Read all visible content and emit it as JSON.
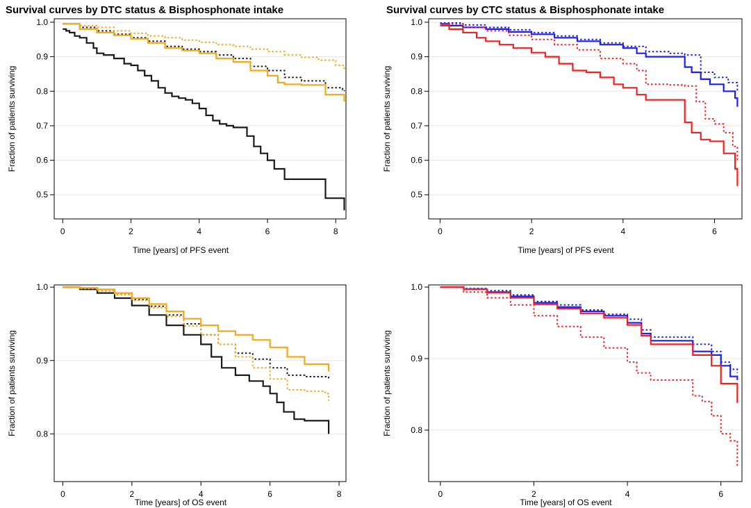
{
  "titles": {
    "left": "Survival curves by DTC status & Bisphosphonate intake",
    "right": "Survival curves by CTC status & Bisphosphonate intake"
  },
  "colors": {
    "black": "#1a1a1a",
    "orange": "#f4a81d",
    "blue": "#1f1fe6",
    "red": "#ee2222",
    "grid": "#e6e6e6"
  },
  "chart_data": [
    {
      "type": "line",
      "id": "pfs-dtc",
      "xlabel": "Time [years] of PFS event",
      "ylabel": "Fraction of patients surviving",
      "xlim": [
        -0.25,
        8.3
      ],
      "ylim": [
        0.43,
        1.01
      ],
      "xticks": [
        0,
        2,
        4,
        6,
        8
      ],
      "yticks": [
        0.5,
        0.6,
        0.7,
        0.8,
        0.9,
        1.0
      ],
      "ytick_labels": [
        "0.5",
        "0.6",
        "0.7",
        "0.8",
        "0.9",
        "1.0"
      ],
      "grid": true,
      "series": [
        {
          "color": "black",
          "dash": false,
          "x": [
            0,
            0.1,
            0.2,
            0.35,
            0.5,
            0.7,
            0.9,
            1.0,
            1.2,
            1.5,
            1.8,
            2.0,
            2.2,
            2.4,
            2.6,
            2.8,
            3.0,
            3.2,
            3.4,
            3.6,
            3.8,
            4.0,
            4.2,
            4.4,
            4.6,
            4.8,
            5.0,
            5.2,
            5.4,
            5.6,
            5.8,
            6.0,
            6.2,
            6.5,
            7.0,
            7.5,
            7.7,
            8.2,
            8.25
          ],
          "y": [
            0.98,
            0.975,
            0.97,
            0.96,
            0.955,
            0.94,
            0.925,
            0.91,
            0.905,
            0.895,
            0.88,
            0.875,
            0.86,
            0.845,
            0.83,
            0.81,
            0.795,
            0.785,
            0.78,
            0.775,
            0.765,
            0.75,
            0.73,
            0.715,
            0.705,
            0.7,
            0.695,
            0.695,
            0.67,
            0.64,
            0.62,
            0.6,
            0.575,
            0.545,
            0.545,
            0.545,
            0.49,
            0.49,
            0.455
          ]
        },
        {
          "color": "black",
          "dash": true,
          "x": [
            0,
            0.5,
            1.0,
            1.5,
            2.0,
            2.5,
            3.0,
            3.5,
            4.0,
            4.5,
            5.0,
            5.5,
            6.0,
            6.5,
            7.0,
            7.7,
            8.2,
            8.25
          ],
          "y": [
            0.995,
            0.985,
            0.975,
            0.965,
            0.955,
            0.945,
            0.93,
            0.922,
            0.915,
            0.905,
            0.895,
            0.872,
            0.86,
            0.84,
            0.83,
            0.81,
            0.805,
            0.8
          ]
        },
        {
          "color": "orange",
          "dash": false,
          "x": [
            0,
            0.5,
            1.0,
            1.5,
            2.0,
            2.5,
            3.0,
            3.5,
            4.0,
            4.5,
            5.0,
            5.5,
            6.0,
            6.3,
            6.5,
            7.0,
            7.7,
            8.2,
            8.25
          ],
          "y": [
            0.995,
            0.98,
            0.97,
            0.962,
            0.952,
            0.94,
            0.925,
            0.918,
            0.91,
            0.895,
            0.885,
            0.86,
            0.845,
            0.825,
            0.82,
            0.818,
            0.79,
            0.79,
            0.77
          ]
        },
        {
          "color": "orange",
          "dash": true,
          "x": [
            0,
            0.5,
            1.0,
            1.5,
            2.0,
            2.5,
            3.0,
            3.5,
            4.0,
            4.5,
            5.0,
            5.5,
            6.0,
            6.5,
            7.0,
            7.5,
            8.0,
            8.25
          ],
          "y": [
            0.995,
            0.99,
            0.985,
            0.975,
            0.968,
            0.96,
            0.955,
            0.948,
            0.942,
            0.935,
            0.93,
            0.922,
            0.915,
            0.905,
            0.898,
            0.89,
            0.875,
            0.86
          ]
        }
      ]
    },
    {
      "type": "line",
      "id": "pfs-ctc",
      "xlabel": "Time [years] of PFS event",
      "ylabel": "Fraction of patients surviving",
      "xlim": [
        -0.25,
        6.6
      ],
      "ylim": [
        0.43,
        1.01
      ],
      "xticks": [
        0,
        2,
        4,
        6
      ],
      "yticks": [
        0.5,
        0.6,
        0.7,
        0.8,
        0.9,
        1.0
      ],
      "ytick_labels": [
        "0.5",
        "0.6",
        "0.7",
        "0.8",
        "0.9",
        "1.0"
      ],
      "grid": true,
      "series": [
        {
          "color": "blue",
          "dash": false,
          "x": [
            0,
            0.2,
            0.5,
            1.0,
            1.5,
            2.0,
            2.5,
            3.0,
            3.5,
            4.0,
            4.3,
            4.5,
            5.0,
            5.35,
            5.5,
            5.7,
            5.9,
            6.2,
            6.45,
            6.5
          ],
          "y": [
            0.995,
            0.99,
            0.985,
            0.98,
            0.972,
            0.965,
            0.955,
            0.945,
            0.935,
            0.925,
            0.91,
            0.9,
            0.9,
            0.87,
            0.855,
            0.835,
            0.82,
            0.8,
            0.78,
            0.755
          ]
        },
        {
          "color": "blue",
          "dash": true,
          "x": [
            0,
            0.5,
            1.0,
            1.5,
            2.0,
            2.5,
            3.0,
            3.5,
            4.0,
            4.5,
            5.0,
            5.35,
            5.7,
            6.0,
            6.3,
            6.5
          ],
          "y": [
            0.998,
            0.992,
            0.985,
            0.978,
            0.97,
            0.96,
            0.95,
            0.94,
            0.93,
            0.915,
            0.91,
            0.905,
            0.855,
            0.84,
            0.825,
            0.8
          ]
        },
        {
          "color": "red",
          "dash": false,
          "x": [
            0,
            0.2,
            0.5,
            0.8,
            1.0,
            1.3,
            1.6,
            2.0,
            2.3,
            2.6,
            2.9,
            3.2,
            3.5,
            3.8,
            4.0,
            4.3,
            4.5,
            5.0,
            5.35,
            5.5,
            5.7,
            5.9,
            6.2,
            6.45,
            6.5
          ],
          "y": [
            0.99,
            0.98,
            0.97,
            0.955,
            0.945,
            0.935,
            0.925,
            0.912,
            0.9,
            0.88,
            0.86,
            0.855,
            0.84,
            0.82,
            0.81,
            0.79,
            0.775,
            0.775,
            0.71,
            0.68,
            0.66,
            0.655,
            0.62,
            0.575,
            0.525
          ]
        },
        {
          "color": "red",
          "dash": true,
          "x": [
            0,
            0.5,
            1.0,
            1.5,
            2.0,
            2.5,
            3.0,
            3.5,
            4.0,
            4.3,
            4.5,
            5.0,
            5.35,
            5.6,
            5.8,
            6.0,
            6.2,
            6.4,
            6.5
          ],
          "y": [
            0.995,
            0.985,
            0.975,
            0.962,
            0.95,
            0.935,
            0.92,
            0.895,
            0.88,
            0.86,
            0.82,
            0.818,
            0.815,
            0.77,
            0.72,
            0.705,
            0.68,
            0.64,
            0.6
          ]
        }
      ]
    },
    {
      "type": "line",
      "id": "os-dtc",
      "xlabel": "Time [years] of OS event",
      "ylabel": "Fraction of patients surviving",
      "xlim": [
        -0.25,
        8.2
      ],
      "ylim": [
        0.735,
        1.003
      ],
      "xticks": [
        0,
        2,
        4,
        6,
        8
      ],
      "yticks": [
        0.8,
        0.9,
        1.0
      ],
      "ytick_labels": [
        "0.8",
        "0.9",
        "1.0"
      ],
      "grid": true,
      "series": [
        {
          "color": "black",
          "dash": false,
          "x": [
            0,
            0.5,
            1.0,
            1.5,
            2.0,
            2.5,
            3.0,
            3.5,
            4.0,
            4.3,
            4.6,
            5.0,
            5.4,
            5.8,
            6.0,
            6.2,
            6.4,
            6.7,
            7.0,
            7.6,
            7.7
          ],
          "y": [
            1.0,
            0.997,
            0.992,
            0.985,
            0.975,
            0.962,
            0.948,
            0.935,
            0.922,
            0.905,
            0.89,
            0.88,
            0.872,
            0.865,
            0.855,
            0.843,
            0.83,
            0.82,
            0.818,
            0.818,
            0.8
          ]
        },
        {
          "color": "black",
          "dash": true,
          "x": [
            0,
            0.5,
            1.0,
            1.5,
            2.0,
            2.5,
            3.0,
            3.5,
            4.0,
            4.5,
            5.0,
            5.5,
            6.0,
            6.5,
            7.0,
            7.5,
            7.7
          ],
          "y": [
            1.0,
            0.998,
            0.995,
            0.99,
            0.983,
            0.974,
            0.962,
            0.95,
            0.935,
            0.922,
            0.91,
            0.902,
            0.89,
            0.88,
            0.878,
            0.878,
            0.875
          ]
        },
        {
          "color": "orange",
          "dash": false,
          "x": [
            0,
            0.5,
            1.0,
            1.5,
            2.0,
            2.5,
            3.0,
            3.5,
            4.0,
            4.5,
            5.0,
            5.5,
            6.0,
            6.5,
            7.0,
            7.6,
            7.7
          ],
          "y": [
            1.0,
            0.999,
            0.997,
            0.992,
            0.985,
            0.977,
            0.967,
            0.957,
            0.948,
            0.94,
            0.935,
            0.928,
            0.918,
            0.905,
            0.895,
            0.895,
            0.885
          ]
        },
        {
          "color": "orange",
          "dash": true,
          "x": [
            0,
            0.5,
            1.0,
            1.5,
            2.0,
            2.5,
            3.0,
            3.5,
            4.0,
            4.5,
            5.0,
            5.5,
            6.0,
            6.5,
            7.0,
            7.6,
            7.7
          ],
          "y": [
            1.0,
            0.998,
            0.995,
            0.99,
            0.982,
            0.972,
            0.96,
            0.947,
            0.935,
            0.922,
            0.905,
            0.89,
            0.875,
            0.86,
            0.858,
            0.855,
            0.845
          ]
        }
      ]
    },
    {
      "type": "line",
      "id": "os-ctc",
      "xlabel": "Time [years] of OS event",
      "ylabel": "Fraction of patients surviving",
      "xlim": [
        -0.25,
        6.45
      ],
      "ylim": [
        0.728,
        1.003
      ],
      "xticks": [
        0,
        2,
        4,
        6
      ],
      "yticks": [
        0.8,
        0.9,
        1.0
      ],
      "ytick_labels": [
        "0.8",
        "0.9",
        "1.0"
      ],
      "grid": true,
      "series": [
        {
          "color": "blue",
          "dash": false,
          "x": [
            0,
            0.5,
            1.0,
            1.5,
            2.0,
            2.5,
            3.0,
            3.5,
            4.0,
            4.3,
            4.5,
            5.0,
            5.4,
            5.8,
            6.0,
            6.2,
            6.35
          ],
          "y": [
            1.0,
            0.997,
            0.993,
            0.987,
            0.978,
            0.972,
            0.966,
            0.96,
            0.95,
            0.935,
            0.925,
            0.925,
            0.91,
            0.905,
            0.89,
            0.875,
            0.87
          ]
        },
        {
          "color": "blue",
          "dash": true,
          "x": [
            0,
            0.5,
            1.0,
            1.5,
            2.0,
            2.5,
            3.0,
            3.5,
            4.0,
            4.3,
            4.5,
            5.0,
            5.4,
            5.8,
            6.0,
            6.2,
            6.35
          ],
          "y": [
            1.0,
            0.998,
            0.995,
            0.989,
            0.98,
            0.975,
            0.968,
            0.962,
            0.955,
            0.94,
            0.93,
            0.93,
            0.92,
            0.91,
            0.895,
            0.885,
            0.88
          ]
        },
        {
          "color": "red",
          "dash": false,
          "x": [
            0,
            0.5,
            1.0,
            1.5,
            2.0,
            2.5,
            3.0,
            3.5,
            4.0,
            4.3,
            4.5,
            5.0,
            5.4,
            5.8,
            6.0,
            6.25,
            6.35
          ],
          "y": [
            1.0,
            0.997,
            0.992,
            0.985,
            0.976,
            0.97,
            0.963,
            0.957,
            0.947,
            0.932,
            0.92,
            0.92,
            0.905,
            0.89,
            0.865,
            0.865,
            0.838
          ]
        },
        {
          "color": "red",
          "dash": true,
          "x": [
            0,
            0.5,
            1.0,
            1.5,
            2.0,
            2.5,
            3.0,
            3.5,
            4.0,
            4.2,
            4.5,
            5.0,
            5.4,
            5.6,
            5.8,
            6.0,
            6.2,
            6.35
          ],
          "y": [
            1.0,
            0.993,
            0.985,
            0.975,
            0.96,
            0.945,
            0.93,
            0.915,
            0.895,
            0.88,
            0.87,
            0.87,
            0.848,
            0.84,
            0.82,
            0.795,
            0.785,
            0.75
          ]
        }
      ]
    }
  ]
}
